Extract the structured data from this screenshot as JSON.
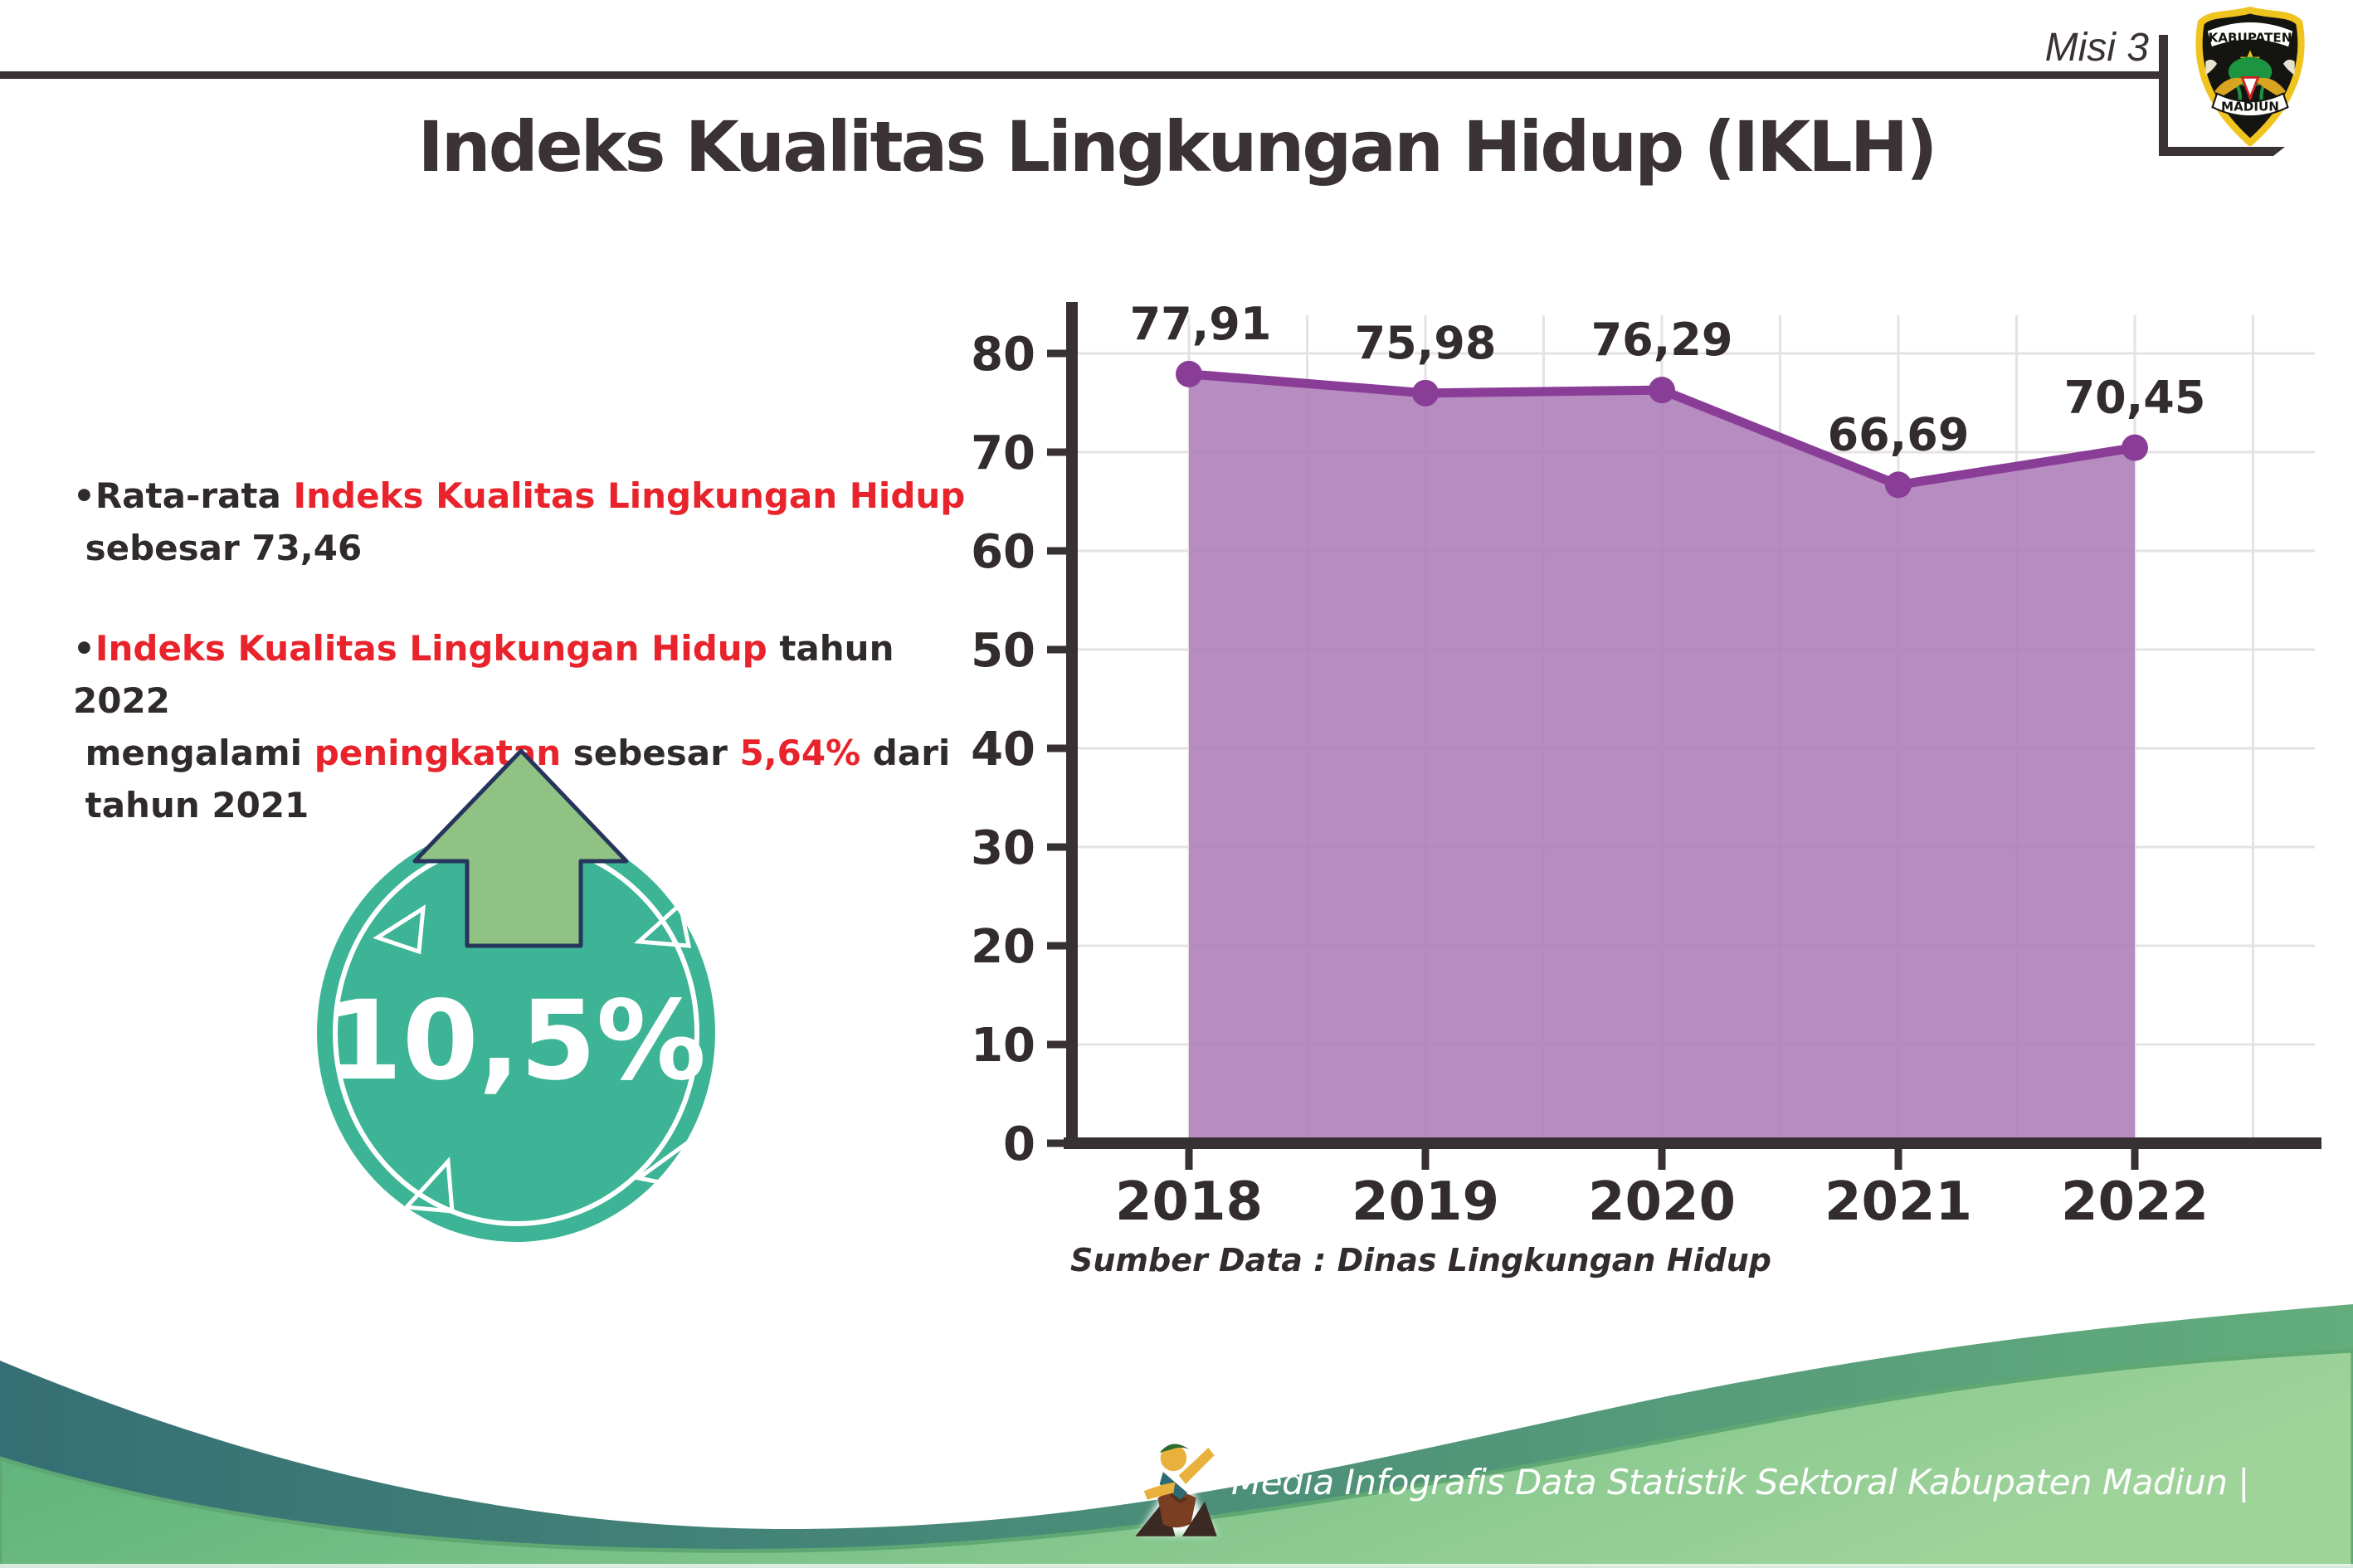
{
  "header": {
    "misi_label": "Misi 3",
    "rule_color": "#3a3234"
  },
  "logo": {
    "top_text": "KABUPATEN",
    "bottom_text": "MADIUN"
  },
  "title": "Indeks Kualitas Lingkungan Hidup (IKLH)",
  "bullets": [
    {
      "segments": [
        {
          "t": "•Rata-rata ",
          "c": "dark"
        },
        {
          "t": "Indeks Kualitas Lingkungan Hidup",
          "c": "red"
        },
        {
          "t": "\n sebesar 73,46",
          "c": "dark"
        }
      ]
    },
    {
      "segments": [
        {
          "t": "•",
          "c": "dark"
        },
        {
          "t": "Indeks Kualitas Lingkungan Hidup",
          "c": "red"
        },
        {
          "t": " tahun 2022\n mengalami ",
          "c": "dark"
        },
        {
          "t": "peningkatan",
          "c": "red"
        },
        {
          "t": " sebesar ",
          "c": "dark"
        },
        {
          "t": "5,64%",
          "c": "red"
        },
        {
          "t": " dari\n tahun 2021",
          "c": "dark"
        }
      ]
    }
  ],
  "badge": {
    "value": "10,5%",
    "circle_color": "#3cb495",
    "arrow_color": "#90c284",
    "arrow_outline_color": "#27355c"
  },
  "chart_data": {
    "type": "area",
    "title": "Indeks Kualitas Lingkungan Hidup (IKLH)",
    "categories": [
      "2018",
      "2019",
      "2020",
      "2021",
      "2022"
    ],
    "values": [
      77.91,
      75.98,
      76.29,
      66.69,
      70.45
    ],
    "value_labels": [
      "77,91",
      "75,98",
      "76,29",
      "66,69",
      "70,45"
    ],
    "y_ticks": [
      0,
      10,
      20,
      30,
      40,
      50,
      60,
      70,
      80
    ],
    "ylim": [
      0,
      85
    ],
    "grid": true,
    "legend": false,
    "line_color": "#8a3d96",
    "fill_color": "#ac7cb8",
    "xlabel": "",
    "ylabel": "",
    "source_note": "Sumber Data : Dinas Lingkungan Hidup"
  },
  "footer": {
    "text": "Media Infografis Data Statistik Sektoral Kabupaten Madiun |"
  }
}
